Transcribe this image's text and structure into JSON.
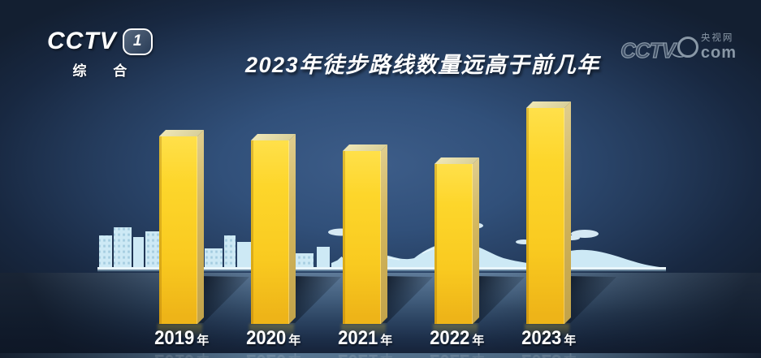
{
  "title": "2023年徒步路线数量远高于前几年",
  "header": {
    "channel": {
      "wordmark": "CCTV",
      "number": "1",
      "subtitle": "综 合"
    }
  },
  "watermark": {
    "wordmark": "CCTV",
    "site_name": "央视网",
    "domain": "com"
  },
  "chart_data": {
    "type": "bar",
    "title": "2023年徒步路线数量远高于前几年",
    "categories": [
      "2019年",
      "2020年",
      "2021年",
      "2022年",
      "2023年"
    ],
    "values": [
      87,
      85,
      80,
      74,
      100
    ],
    "value_note": "no numeric axis shown; values estimated as % of tallest (2023) bar",
    "xlabel": "",
    "ylabel": "",
    "ylim": [
      0,
      100
    ],
    "grid": false,
    "legend": false,
    "bar_color": "#fcd020"
  },
  "colors": {
    "accent_yellow": "#fcd020",
    "background_navy": "#31507a",
    "background_edge": "#131f31",
    "skyline_blue": "#cde9f5",
    "text_white": "#ffffff",
    "watermark_gray": "#a6b5c2"
  }
}
